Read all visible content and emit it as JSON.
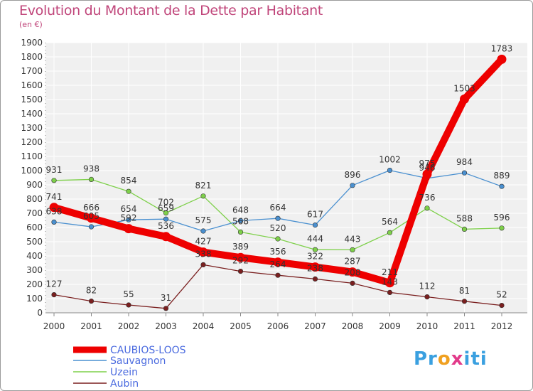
{
  "title": "Evolution du Montant de la Dette par Habitant",
  "subtitle": "(en €)",
  "logo": {
    "a": "Pr",
    "b": "o",
    "c": "x",
    "d": "iti"
  },
  "colors": {
    "caubios": "#ee0000",
    "sauvagnon": "#4a90d0",
    "uzein": "#7ed04a",
    "aubin": "#7a1f1f",
    "title": "#c0457a"
  },
  "chart_data": {
    "type": "line",
    "x": [
      "2000",
      "2001",
      "2002",
      "2003",
      "2004",
      "2005",
      "2006",
      "2007",
      "2008",
      "2009",
      "2010",
      "2011",
      "2012"
    ],
    "ylim": [
      0,
      1900
    ],
    "yticks": [
      0,
      100,
      200,
      300,
      400,
      500,
      600,
      700,
      800,
      900,
      1000,
      1100,
      1200,
      1300,
      1400,
      1500,
      1600,
      1700,
      1800,
      1900
    ],
    "grid": true,
    "legend": "bottom-left",
    "series": [
      {
        "name": "CAUBIOS-LOOS",
        "values": [
          741,
          666,
          592,
          536,
          427,
          389,
          356,
          322,
          287,
          211,
          975,
          1503,
          1783
        ],
        "labels": [
          "741",
          "666",
          "592",
          "536",
          "427",
          "389",
          "356",
          "322",
          "287",
          "211",
          "975",
          "1503",
          "1783"
        ]
      },
      {
        "name": "Sauvagnon",
        "values": [
          638,
          605,
          654,
          659,
          575,
          648,
          664,
          617,
          896,
          1002,
          946,
          984,
          889
        ],
        "labels": [
          "638",
          "605",
          "654",
          "659",
          "575",
          "648",
          "664",
          "617",
          "896",
          "1002",
          "946",
          "984",
          "889"
        ]
      },
      {
        "name": "Uzein",
        "values": [
          931,
          938,
          854,
          702,
          821,
          568,
          520,
          444,
          443,
          564,
          736,
          588,
          596
        ],
        "labels": [
          "931",
          "938",
          "854",
          "702",
          "821",
          "568",
          "520",
          "444",
          "443",
          "564",
          "736",
          "588",
          "596"
        ]
      },
      {
        "name": "Aubin",
        "values": [
          127,
          82,
          55,
          31,
          338,
          292,
          264,
          238,
          208,
          143,
          112,
          81,
          52
        ],
        "labels": [
          "127",
          "82",
          "55",
          "31",
          "338",
          "292",
          "264",
          "238",
          "208",
          "143",
          "112",
          "81",
          "52"
        ]
      }
    ]
  }
}
